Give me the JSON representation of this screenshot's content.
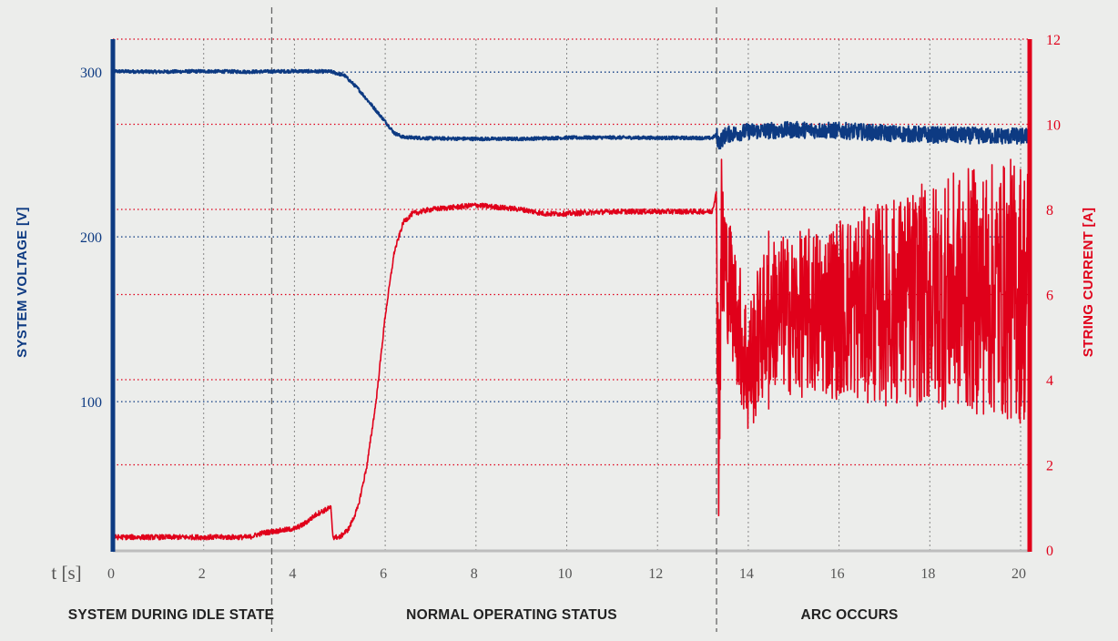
{
  "colors": {
    "voltage": "#0d3a82",
    "current": "#e0001a",
    "background": "#ecedeb",
    "grid": "#888888",
    "phase_divider": "#666666",
    "baseline": "#bdbdbd"
  },
  "chart_data": {
    "type": "line",
    "x_label": "t [s]",
    "x_range": [
      0,
      20.2
    ],
    "x_ticks": [
      0,
      2,
      4,
      6,
      8,
      10,
      12,
      14,
      16,
      18,
      20
    ],
    "y_left": {
      "label": "SYSTEM VOLTAGE [V]",
      "range": [
        10,
        320
      ],
      "ticks": [
        100,
        200,
        300
      ]
    },
    "y_right": {
      "label": "STRING CURRENT [A]",
      "range": [
        0,
        12
      ],
      "ticks": [
        0,
        2,
        4,
        6,
        8,
        10,
        12
      ]
    },
    "grid": true,
    "series": [
      {
        "axis": "left",
        "color": "#0d3a82",
        "points": [
          [
            0,
            300.5
          ],
          [
            1,
            300.2
          ],
          [
            2,
            300.5
          ],
          [
            3,
            300.2
          ],
          [
            4,
            300.6
          ],
          [
            4.8,
            300.3
          ],
          [
            5.1,
            298
          ],
          [
            5.4,
            290
          ],
          [
            5.7,
            280
          ],
          [
            6,
            270
          ],
          [
            6.2,
            263
          ],
          [
            6.4,
            260.5
          ],
          [
            7,
            259.8
          ],
          [
            8,
            259.5
          ],
          [
            9,
            259.5
          ],
          [
            10,
            260.2
          ],
          [
            11,
            260.3
          ],
          [
            12,
            260.1
          ],
          [
            13.2,
            260
          ],
          [
            13.3,
            262
          ],
          [
            13.35,
            257
          ],
          [
            13.5,
            262
          ],
          [
            14,
            264
          ],
          [
            15,
            265
          ],
          [
            16,
            264.5
          ],
          [
            17,
            263
          ],
          [
            18,
            262
          ],
          [
            19,
            261.5
          ],
          [
            20.2,
            261
          ]
        ]
      },
      {
        "axis": "right",
        "color": "#e0001a",
        "points": [
          [
            0,
            0.3
          ],
          [
            1,
            0.3
          ],
          [
            2,
            0.3
          ],
          [
            3,
            0.3
          ],
          [
            3.3,
            0.4
          ],
          [
            4,
            0.5
          ],
          [
            4.2,
            0.6
          ],
          [
            4.5,
            0.85
          ],
          [
            4.8,
            1.0
          ],
          [
            4.85,
            0.3
          ],
          [
            5,
            0.3
          ],
          [
            5.2,
            0.5
          ],
          [
            5.4,
            1.0
          ],
          [
            5.6,
            2.0
          ],
          [
            5.8,
            3.5
          ],
          [
            6,
            5.5
          ],
          [
            6.2,
            7.0
          ],
          [
            6.4,
            7.7
          ],
          [
            6.6,
            7.9
          ],
          [
            7,
            8.0
          ],
          [
            8,
            8.1
          ],
          [
            9,
            8.0
          ],
          [
            9.5,
            7.9
          ],
          [
            10,
            7.9
          ],
          [
            11,
            7.95
          ],
          [
            12,
            7.95
          ],
          [
            13.2,
            7.95
          ],
          [
            13.3,
            8.4
          ],
          [
            13.35,
            2.7
          ],
          [
            13.4,
            7.0
          ],
          [
            13.6,
            6.2
          ],
          [
            13.8,
            5.2
          ],
          [
            14,
            4.2
          ],
          [
            14.3,
            5.2
          ],
          [
            14.6,
            5.6
          ],
          [
            15,
            5.5
          ],
          [
            16,
            5.7
          ],
          [
            17,
            5.8
          ],
          [
            18,
            6.0
          ],
          [
            19,
            6.1
          ],
          [
            20.2,
            6.1
          ]
        ]
      }
    ],
    "phase_dividers_at": [
      3.5,
      13.3
    ],
    "phases": [
      {
        "label": "SYSTEM DURING IDLE STATE",
        "from": 0,
        "to": 3.5
      },
      {
        "label": "NORMAL OPERATING STATUS",
        "from": 3.5,
        "to": 13.3
      },
      {
        "label": "ARC OCCURS",
        "from": 13.3,
        "to": 20.2
      }
    ]
  }
}
